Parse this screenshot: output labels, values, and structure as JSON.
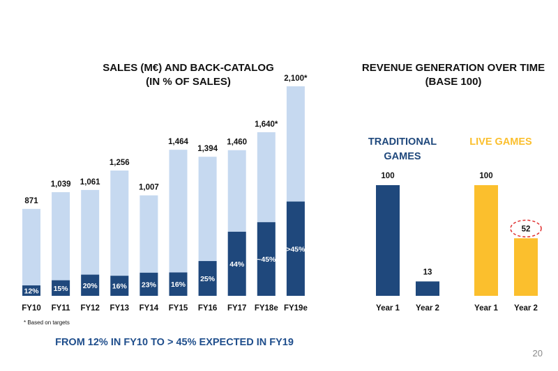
{
  "chart_data": [
    {
      "type": "bar",
      "title_lines": [
        "SALES (M€) AND BACK-CATALOG",
        "(IN % OF SALES)"
      ],
      "categories": [
        "FY10",
        "FY11",
        "FY12",
        "FY13",
        "FY14",
        "FY15",
        "FY16",
        "FY17",
        "FY18e",
        "FY19e"
      ],
      "series": [
        {
          "values": [
            871,
            1039,
            1061,
            1256,
            1007,
            1464,
            1394,
            1460,
            1640,
            2100
          ],
          "labels": [
            "871",
            "1,039",
            "1,061",
            "1,256",
            "1,007",
            "1,464",
            "1,394",
            "1,460",
            "1,640*",
            "2,100*"
          ]
        },
        {
          "values": [
            12,
            15,
            20,
            16,
            23,
            16,
            25,
            44,
            45,
            45
          ],
          "labels": [
            "12%",
            "15%",
            "20%",
            "16%",
            "23%",
            "16%",
            "25%",
            "44%",
            "~45%",
            ">45%"
          ]
        }
      ],
      "ylim": [
        0,
        2100
      ],
      "grid": false,
      "colors": {
        "total": "#c6d9f0",
        "back_catalog": "#1f487c"
      },
      "footnote": "* Based on targets"
    },
    {
      "type": "bar",
      "title_lines": [
        "REVENUE GENERATION OVER TIME",
        "(BASE 100)"
      ],
      "groups": [
        {
          "name_lines": [
            "TRADITIONAL",
            "GAMES"
          ],
          "color": "#1f487c",
          "categories": [
            "Year 1",
            "Year 2"
          ],
          "values": [
            100,
            13
          ],
          "labels": [
            "100",
            "13"
          ]
        },
        {
          "name_lines": [
            "LIVE GAMES"
          ],
          "color": "#fbbf2d",
          "categories": [
            "Year 1",
            "Year 2"
          ],
          "values": [
            100,
            52
          ],
          "labels": [
            "100",
            "52"
          ]
        }
      ],
      "ylim": [
        0,
        100
      ],
      "highlight": {
        "group": 1,
        "index": 1,
        "color": "#e03030"
      }
    }
  ],
  "conclusion": "FROM 12% IN FY10 TO > 45% EXPECTED IN FY19",
  "page_number": "20"
}
